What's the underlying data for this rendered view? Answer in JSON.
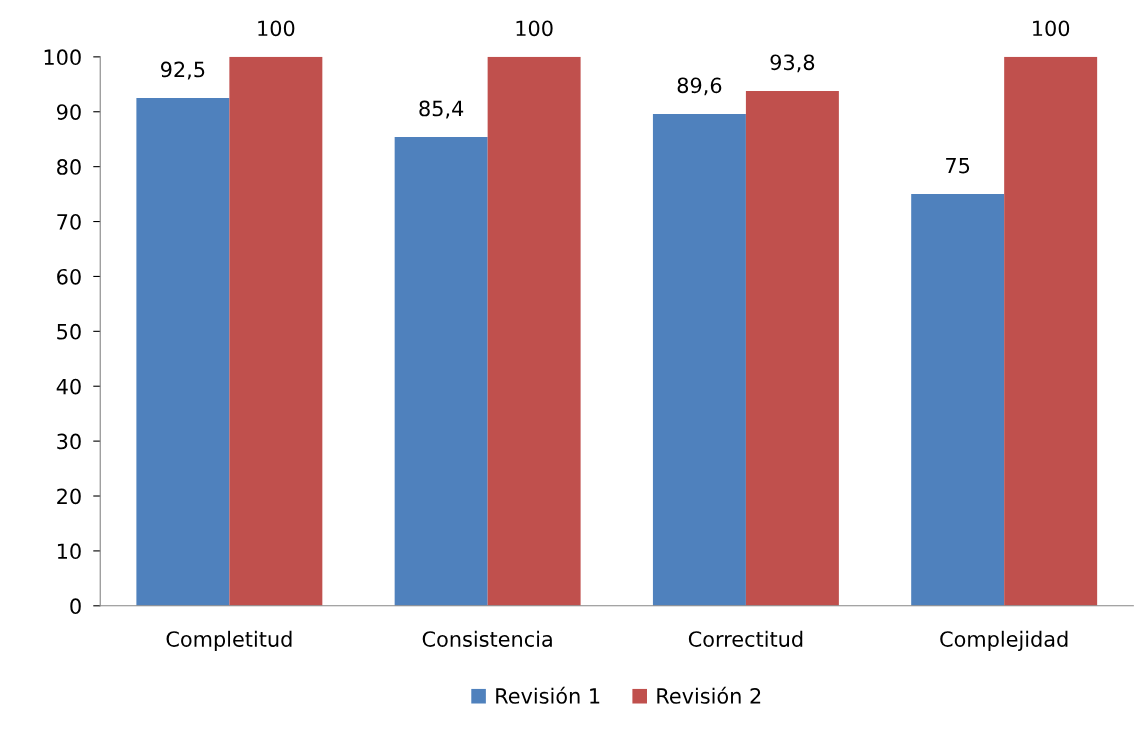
{
  "chart_data": {
    "type": "bar",
    "categories": [
      "Completitud",
      "Consistencia",
      "Correctitud",
      "Complejidad"
    ],
    "series": [
      {
        "name": "Revisión 1",
        "color": "#4f81bd",
        "values": [
          92.5,
          85.4,
          89.6,
          75
        ],
        "value_labels": [
          "92,5",
          "85,4",
          "89,6",
          "75"
        ]
      },
      {
        "name": "Revisión 2",
        "color": "#c0504d",
        "values": [
          100,
          100,
          93.8,
          100
        ],
        "value_labels": [
          "100",
          "100",
          "93,8",
          "100"
        ]
      }
    ],
    "ylim": [
      0,
      100
    ],
    "yticks": [
      0,
      10,
      20,
      30,
      40,
      50,
      60,
      70,
      80,
      90,
      100
    ],
    "grid": false,
    "legend": "bottom"
  }
}
